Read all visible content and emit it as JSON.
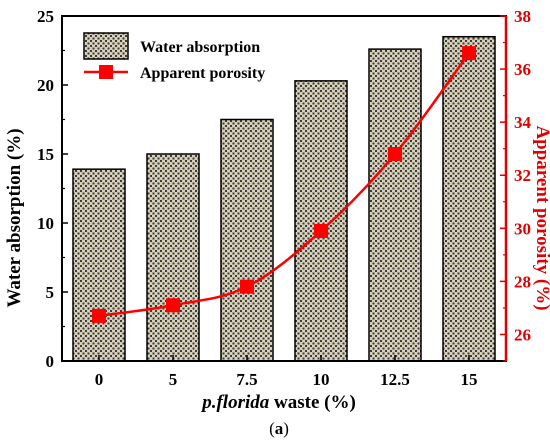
{
  "chart_data": {
    "type": "bar",
    "categories": [
      "0",
      "5",
      "7.5",
      "10",
      "12.5",
      "15"
    ],
    "series": [
      {
        "name": "Water absorption",
        "type": "bar",
        "axis": "left",
        "values": [
          13.9,
          15.0,
          17.5,
          20.3,
          22.6,
          23.5
        ]
      },
      {
        "name": "Apparent porosity",
        "type": "line",
        "axis": "right",
        "values": [
          26.7,
          27.1,
          27.8,
          29.9,
          32.8,
          36.6
        ]
      }
    ],
    "xlabel_italic": "p.florida",
    "xlabel_rest": " waste (%)",
    "ylabel": "Water absorption (%)",
    "y2label": "Apparent porosity (%)",
    "ylim": [
      0,
      25
    ],
    "y2lim": [
      25,
      38
    ],
    "yticks": [
      "0",
      "5",
      "10",
      "15",
      "20",
      "25"
    ],
    "y2ticks": [
      "26",
      "28",
      "30",
      "32",
      "34",
      "36",
      "38"
    ],
    "legend_position": "top-left",
    "caption_open": "(",
    "caption_letter": "a",
    "caption_close": ")",
    "colors": {
      "bar_fill": "#d8d0b8",
      "bar_hatch": "#3a3a3a",
      "line": "#ff0000",
      "right_axis": "#e00000"
    }
  }
}
